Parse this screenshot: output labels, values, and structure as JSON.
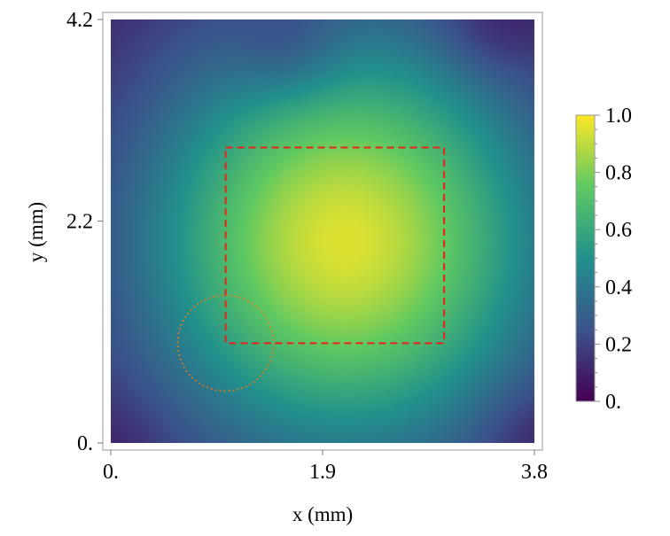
{
  "chart_data": {
    "type": "heatmap",
    "title": "",
    "xlabel": "x (mm)",
    "ylabel": "y (mm)",
    "xlim": [
      0,
      3.8
    ],
    "ylim": [
      0,
      4.2
    ],
    "x_ticks": [
      {
        "value": 0,
        "label": "0."
      },
      {
        "value": 1.9,
        "label": "1.9"
      },
      {
        "value": 3.8,
        "label": "3.8"
      }
    ],
    "y_ticks": [
      {
        "value": 0,
        "label": "0."
      },
      {
        "value": 2.2,
        "label": "2.2"
      },
      {
        "value": 4.2,
        "label": "4.2"
      }
    ],
    "colorbar": {
      "range": [
        0,
        1.0
      ],
      "colormap": [
        "#440154",
        "#3b528b",
        "#21918c",
        "#5ec962",
        "#fde725"
      ],
      "ticks": [
        {
          "value": 0,
          "label": "0."
        },
        {
          "value": 0.2,
          "label": "0.2"
        },
        {
          "value": 0.4,
          "label": "0.4"
        },
        {
          "value": 0.6,
          "label": "0.6"
        },
        {
          "value": 0.8,
          "label": "0.8"
        },
        {
          "value": 1.0,
          "label": "1.0"
        }
      ]
    },
    "field": {
      "peak": {
        "x": 2.1,
        "y": 2.0,
        "value": 0.95
      },
      "sigma_x": 1.25,
      "sigma_y": 1.45,
      "base": 0.08,
      "low_regions": [
        {
          "x": 1.6,
          "y": 3.85,
          "depth": 0.12
        },
        {
          "x": 3.45,
          "y": 4.1,
          "depth": 0.1
        },
        {
          "x": 3.8,
          "y": 0.1,
          "depth": 0.08
        },
        {
          "x": 0.0,
          "y": 0.0,
          "depth": 0.05
        }
      ]
    },
    "annotations": [
      {
        "type": "rectangle",
        "style": "dashed",
        "color": "#e8211a",
        "x0": 1.03,
        "x1": 2.99,
        "y0": 0.99,
        "y1": 2.93
      },
      {
        "type": "circle",
        "style": "dotted",
        "color": "#e87a1a",
        "cx": 1.03,
        "cy": 0.99,
        "r": 0.43
      }
    ],
    "grid": false,
    "legend": "colorbar-right"
  }
}
